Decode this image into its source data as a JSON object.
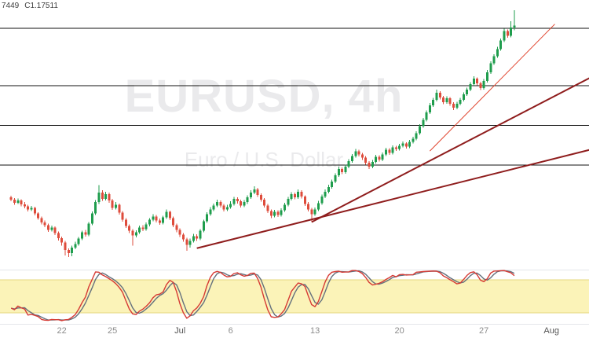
{
  "ohlc_readout": {
    "fragment": "7449",
    "close": "C1.17511"
  },
  "watermark": {
    "symbol_line": "EURUSD, 4h",
    "name_line": "Euro / U.S. Dollar"
  },
  "colors": {
    "background": "#ffffff",
    "bullish": "#1f9d4d",
    "bearish": "#de4c3c",
    "level_line": "#111111",
    "trend_dark": "#8f1d1d",
    "trend_bright": "#e0442e",
    "stoch_k": "#d63a34",
    "stoch_d": "#64707d",
    "band_fill": "#fbf3b8",
    "band_edge": "#e4d77f",
    "axis_text": "#8c8c8c",
    "axis_text_major": "#555555",
    "divider": "#e4e6ea",
    "readout_text": "#3d3d3d"
  },
  "chart_data": {
    "type": "candlestick",
    "symbol": "EURUSD",
    "interval": "4h",
    "price_range": [
      1.114,
      1.18
    ],
    "horizontal_lines": [
      1.1745,
      1.16,
      1.15,
      1.14
    ],
    "trend_lines": [
      {
        "name": "support-trendline-long",
        "from": [
          55,
          1.119
        ],
        "to": [
          176,
          1.1448
        ],
        "color": "#8f1d1d",
        "width": 2
      },
      {
        "name": "support-trendline-steep",
        "from": [
          89,
          1.1256
        ],
        "to": [
          176,
          1.164
        ],
        "color": "#8f1d1d",
        "width": 2
      },
      {
        "name": "acceleration-trendline",
        "from": [
          124,
          1.1435
        ],
        "to": [
          161,
          1.1755
        ],
        "color": "#e0442e",
        "width": 1
      }
    ],
    "indicator": {
      "type": "stochastic",
      "params": {
        "k": 14,
        "k_smooth": 3,
        "d_smooth": 3
      },
      "range": [
        0,
        100
      ],
      "band": [
        20,
        80
      ]
    },
    "time_axis": [
      {
        "label": "22",
        "candle": 15,
        "major": false
      },
      {
        "label": "25",
        "candle": 30,
        "major": false
      },
      {
        "label": "Jul",
        "candle": 50,
        "major": true
      },
      {
        "label": "6",
        "candle": 65,
        "major": false
      },
      {
        "label": "13",
        "candle": 90,
        "major": false
      },
      {
        "label": "20",
        "candle": 115,
        "major": false
      },
      {
        "label": "27",
        "candle": 140,
        "major": false
      },
      {
        "label": "Aug",
        "candle": 160,
        "major": true
      }
    ],
    "candles": [
      [
        1.1318,
        1.1322,
        1.1308,
        1.1312
      ],
      [
        1.1312,
        1.1316,
        1.13,
        1.1305
      ],
      [
        1.1305,
        1.1315,
        1.1302,
        1.131
      ],
      [
        1.131,
        1.1313,
        1.1296,
        1.1301
      ],
      [
        1.1301,
        1.1306,
        1.1291,
        1.1296
      ],
      [
        1.1296,
        1.13,
        1.1283,
        1.1288
      ],
      [
        1.1288,
        1.1297,
        1.1284,
        1.1292
      ],
      [
        1.1292,
        1.1295,
        1.1273,
        1.1278
      ],
      [
        1.1278,
        1.1281,
        1.1262,
        1.1266
      ],
      [
        1.1266,
        1.127,
        1.125,
        1.1255
      ],
      [
        1.1255,
        1.126,
        1.1243,
        1.1248
      ],
      [
        1.1248,
        1.1252,
        1.1231,
        1.1236
      ],
      [
        1.1236,
        1.1247,
        1.1232,
        1.1242
      ],
      [
        1.1242,
        1.1245,
        1.1223,
        1.1228
      ],
      [
        1.1228,
        1.1232,
        1.1209,
        1.1215
      ],
      [
        1.1215,
        1.1219,
        1.1196,
        1.1204
      ],
      [
        1.1204,
        1.1208,
        1.1172,
        1.1186
      ],
      [
        1.1186,
        1.119,
        1.1168,
        1.1178
      ],
      [
        1.1178,
        1.1196,
        1.117,
        1.1192
      ],
      [
        1.1192,
        1.1206,
        1.1188,
        1.12
      ],
      [
        1.12,
        1.1218,
        1.1196,
        1.1214
      ],
      [
        1.1214,
        1.1234,
        1.121,
        1.123
      ],
      [
        1.123,
        1.1236,
        1.1219,
        1.1224
      ],
      [
        1.1224,
        1.1256,
        1.122,
        1.1252
      ],
      [
        1.1252,
        1.1283,
        1.1248,
        1.1278
      ],
      [
        1.1278,
        1.1311,
        1.1274,
        1.1306
      ],
      [
        1.1306,
        1.1349,
        1.1302,
        1.133
      ],
      [
        1.133,
        1.1336,
        1.1309,
        1.1314
      ],
      [
        1.1314,
        1.1332,
        1.131,
        1.1326
      ],
      [
        1.1326,
        1.133,
        1.1305,
        1.131
      ],
      [
        1.131,
        1.1314,
        1.1287,
        1.1292
      ],
      [
        1.1292,
        1.1306,
        1.1288,
        1.13
      ],
      [
        1.13,
        1.1303,
        1.1275,
        1.128
      ],
      [
        1.128,
        1.1284,
        1.1257,
        1.1262
      ],
      [
        1.1262,
        1.1266,
        1.1241,
        1.1246
      ],
      [
        1.1246,
        1.125,
        1.1228,
        1.1234
      ],
      [
        1.1234,
        1.1238,
        1.1196,
        1.1222
      ],
      [
        1.1222,
        1.1235,
        1.1217,
        1.123
      ],
      [
        1.123,
        1.1247,
        1.1226,
        1.1242
      ],
      [
        1.1242,
        1.1248,
        1.1233,
        1.1238
      ],
      [
        1.1238,
        1.1255,
        1.1234,
        1.125
      ],
      [
        1.125,
        1.1266,
        1.1245,
        1.1262
      ],
      [
        1.1262,
        1.1276,
        1.1258,
        1.127
      ],
      [
        1.127,
        1.1274,
        1.1255,
        1.126
      ],
      [
        1.126,
        1.1265,
        1.1249,
        1.1254
      ],
      [
        1.1254,
        1.1272,
        1.125,
        1.1268
      ],
      [
        1.1268,
        1.1288,
        1.1264,
        1.1282
      ],
      [
        1.1282,
        1.1285,
        1.1261,
        1.1266
      ],
      [
        1.1266,
        1.127,
        1.1243,
        1.1248
      ],
      [
        1.1248,
        1.1252,
        1.123,
        1.1236
      ],
      [
        1.1236,
        1.124,
        1.1218,
        1.1224
      ],
      [
        1.1224,
        1.1228,
        1.1206,
        1.1212
      ],
      [
        1.1212,
        1.1216,
        1.1184,
        1.1198
      ],
      [
        1.1198,
        1.1214,
        1.1192,
        1.1208
      ],
      [
        1.1208,
        1.1226,
        1.1204,
        1.122
      ],
      [
        1.122,
        1.1225,
        1.1208,
        1.1214
      ],
      [
        1.1214,
        1.1238,
        1.121,
        1.1234
      ],
      [
        1.1234,
        1.1262,
        1.123,
        1.1258
      ],
      [
        1.1258,
        1.1281,
        1.1254,
        1.1276
      ],
      [
        1.1276,
        1.1294,
        1.1272,
        1.1288
      ],
      [
        1.1288,
        1.1303,
        1.1284,
        1.1298
      ],
      [
        1.1298,
        1.1312,
        1.1294,
        1.1306
      ],
      [
        1.1306,
        1.131,
        1.1293,
        1.1298
      ],
      [
        1.1298,
        1.1302,
        1.1283,
        1.1288
      ],
      [
        1.1288,
        1.13,
        1.1284,
        1.1294
      ],
      [
        1.1294,
        1.1308,
        1.129,
        1.1302
      ],
      [
        1.1302,
        1.1319,
        1.1298,
        1.1314
      ],
      [
        1.1314,
        1.1318,
        1.1303,
        1.1308
      ],
      [
        1.1308,
        1.1312,
        1.1293,
        1.1298
      ],
      [
        1.1298,
        1.1311,
        1.1294,
        1.1306
      ],
      [
        1.1306,
        1.1323,
        1.1302,
        1.1318
      ],
      [
        1.1318,
        1.1336,
        1.1314,
        1.133
      ],
      [
        1.133,
        1.1346,
        1.1326,
        1.1338
      ],
      [
        1.1338,
        1.1342,
        1.1319,
        1.1324
      ],
      [
        1.1324,
        1.1328,
        1.1307,
        1.1312
      ],
      [
        1.1312,
        1.1316,
        1.1293,
        1.1298
      ],
      [
        1.1298,
        1.1302,
        1.1279,
        1.1284
      ],
      [
        1.1284,
        1.1288,
        1.1266,
        1.1272
      ],
      [
        1.1272,
        1.1287,
        1.1268,
        1.1282
      ],
      [
        1.1282,
        1.1286,
        1.1269,
        1.1274
      ],
      [
        1.1274,
        1.1291,
        1.127,
        1.1286
      ],
      [
        1.1286,
        1.1305,
        1.1282,
        1.13
      ],
      [
        1.13,
        1.1319,
        1.1296,
        1.1314
      ],
      [
        1.1314,
        1.1331,
        1.131,
        1.1326
      ],
      [
        1.1326,
        1.133,
        1.1313,
        1.1318
      ],
      [
        1.1318,
        1.1338,
        1.1314,
        1.1332
      ],
      [
        1.1332,
        1.1336,
        1.1315,
        1.132
      ],
      [
        1.132,
        1.1323,
        1.1297,
        1.1302
      ],
      [
        1.1302,
        1.1306,
        1.1283,
        1.1288
      ],
      [
        1.1288,
        1.1292,
        1.1256,
        1.1276
      ],
      [
        1.1276,
        1.1293,
        1.1272,
        1.1288
      ],
      [
        1.1288,
        1.1309,
        1.1284,
        1.1304
      ],
      [
        1.1304,
        1.1325,
        1.13,
        1.132
      ],
      [
        1.132,
        1.1338,
        1.1316,
        1.1332
      ],
      [
        1.1332,
        1.135,
        1.1328,
        1.1344
      ],
      [
        1.1344,
        1.1363,
        1.134,
        1.1358
      ],
      [
        1.1358,
        1.1379,
        1.1354,
        1.1374
      ],
      [
        1.1374,
        1.1396,
        1.137,
        1.139
      ],
      [
        1.139,
        1.1394,
        1.1377,
        1.1382
      ],
      [
        1.1382,
        1.1401,
        1.1378,
        1.1396
      ],
      [
        1.1396,
        1.1415,
        1.1392,
        1.141
      ],
      [
        1.141,
        1.1427,
        1.1406,
        1.1422
      ],
      [
        1.1422,
        1.144,
        1.1418,
        1.1434
      ],
      [
        1.1434,
        1.1438,
        1.1421,
        1.1426
      ],
      [
        1.1426,
        1.143,
        1.1413,
        1.1418
      ],
      [
        1.1418,
        1.1422,
        1.1401,
        1.1406
      ],
      [
        1.1406,
        1.141,
        1.139,
        1.1396
      ],
      [
        1.1396,
        1.1413,
        1.1392,
        1.1408
      ],
      [
        1.1408,
        1.1425,
        1.1404,
        1.142
      ],
      [
        1.142,
        1.1424,
        1.1409,
        1.1414
      ],
      [
        1.1414,
        1.1431,
        1.141,
        1.1426
      ],
      [
        1.1426,
        1.1443,
        1.1422,
        1.1438
      ],
      [
        1.1438,
        1.1442,
        1.1425,
        1.143
      ],
      [
        1.143,
        1.1449,
        1.1426,
        1.1444
      ],
      [
        1.1444,
        1.1448,
        1.1435,
        1.144
      ],
      [
        1.144,
        1.1453,
        1.1436,
        1.1448
      ],
      [
        1.1448,
        1.1459,
        1.1444,
        1.1454
      ],
      [
        1.1454,
        1.1457,
        1.1441,
        1.1446
      ],
      [
        1.1446,
        1.1463,
        1.1442,
        1.1458
      ],
      [
        1.1458,
        1.1471,
        1.1454,
        1.1466
      ],
      [
        1.1466,
        1.1485,
        1.1462,
        1.148
      ],
      [
        1.148,
        1.1503,
        1.1476,
        1.1498
      ],
      [
        1.1498,
        1.1519,
        1.1494,
        1.1514
      ],
      [
        1.1514,
        1.1537,
        1.151,
        1.1532
      ],
      [
        1.1532,
        1.1556,
        1.1528,
        1.155
      ],
      [
        1.155,
        1.1569,
        1.1546,
        1.1564
      ],
      [
        1.1564,
        1.159,
        1.156,
        1.1582
      ],
      [
        1.1582,
        1.1586,
        1.1565,
        1.157
      ],
      [
        1.157,
        1.1574,
        1.1553,
        1.1558
      ],
      [
        1.1558,
        1.1573,
        1.1554,
        1.1568
      ],
      [
        1.1568,
        1.1571,
        1.1549,
        1.1554
      ],
      [
        1.1554,
        1.1558,
        1.1538,
        1.1544
      ],
      [
        1.1544,
        1.1559,
        1.154,
        1.1554
      ],
      [
        1.1554,
        1.1569,
        1.155,
        1.1564
      ],
      [
        1.1564,
        1.1583,
        1.156,
        1.1578
      ],
      [
        1.1578,
        1.1595,
        1.1574,
        1.159
      ],
      [
        1.159,
        1.1609,
        1.1586,
        1.1604
      ],
      [
        1.1604,
        1.1624,
        1.16,
        1.1618
      ],
      [
        1.1618,
        1.1621,
        1.1601,
        1.1606
      ],
      [
        1.1606,
        1.161,
        1.1589,
        1.1594
      ],
      [
        1.1594,
        1.1617,
        1.159,
        1.1612
      ],
      [
        1.1612,
        1.1639,
        1.1608,
        1.1634
      ],
      [
        1.1634,
        1.1661,
        1.163,
        1.1656
      ],
      [
        1.1656,
        1.1679,
        1.1652,
        1.1674
      ],
      [
        1.1674,
        1.1698,
        1.167,
        1.1692
      ],
      [
        1.1692,
        1.1719,
        1.1688,
        1.1714
      ],
      [
        1.1714,
        1.1744,
        1.171,
        1.1738
      ],
      [
        1.1738,
        1.1742,
        1.1721,
        1.1726
      ],
      [
        1.1726,
        1.1762,
        1.1722,
        1.1746
      ],
      [
        1.1746,
        1.179,
        1.174,
        1.17511
      ]
    ]
  }
}
